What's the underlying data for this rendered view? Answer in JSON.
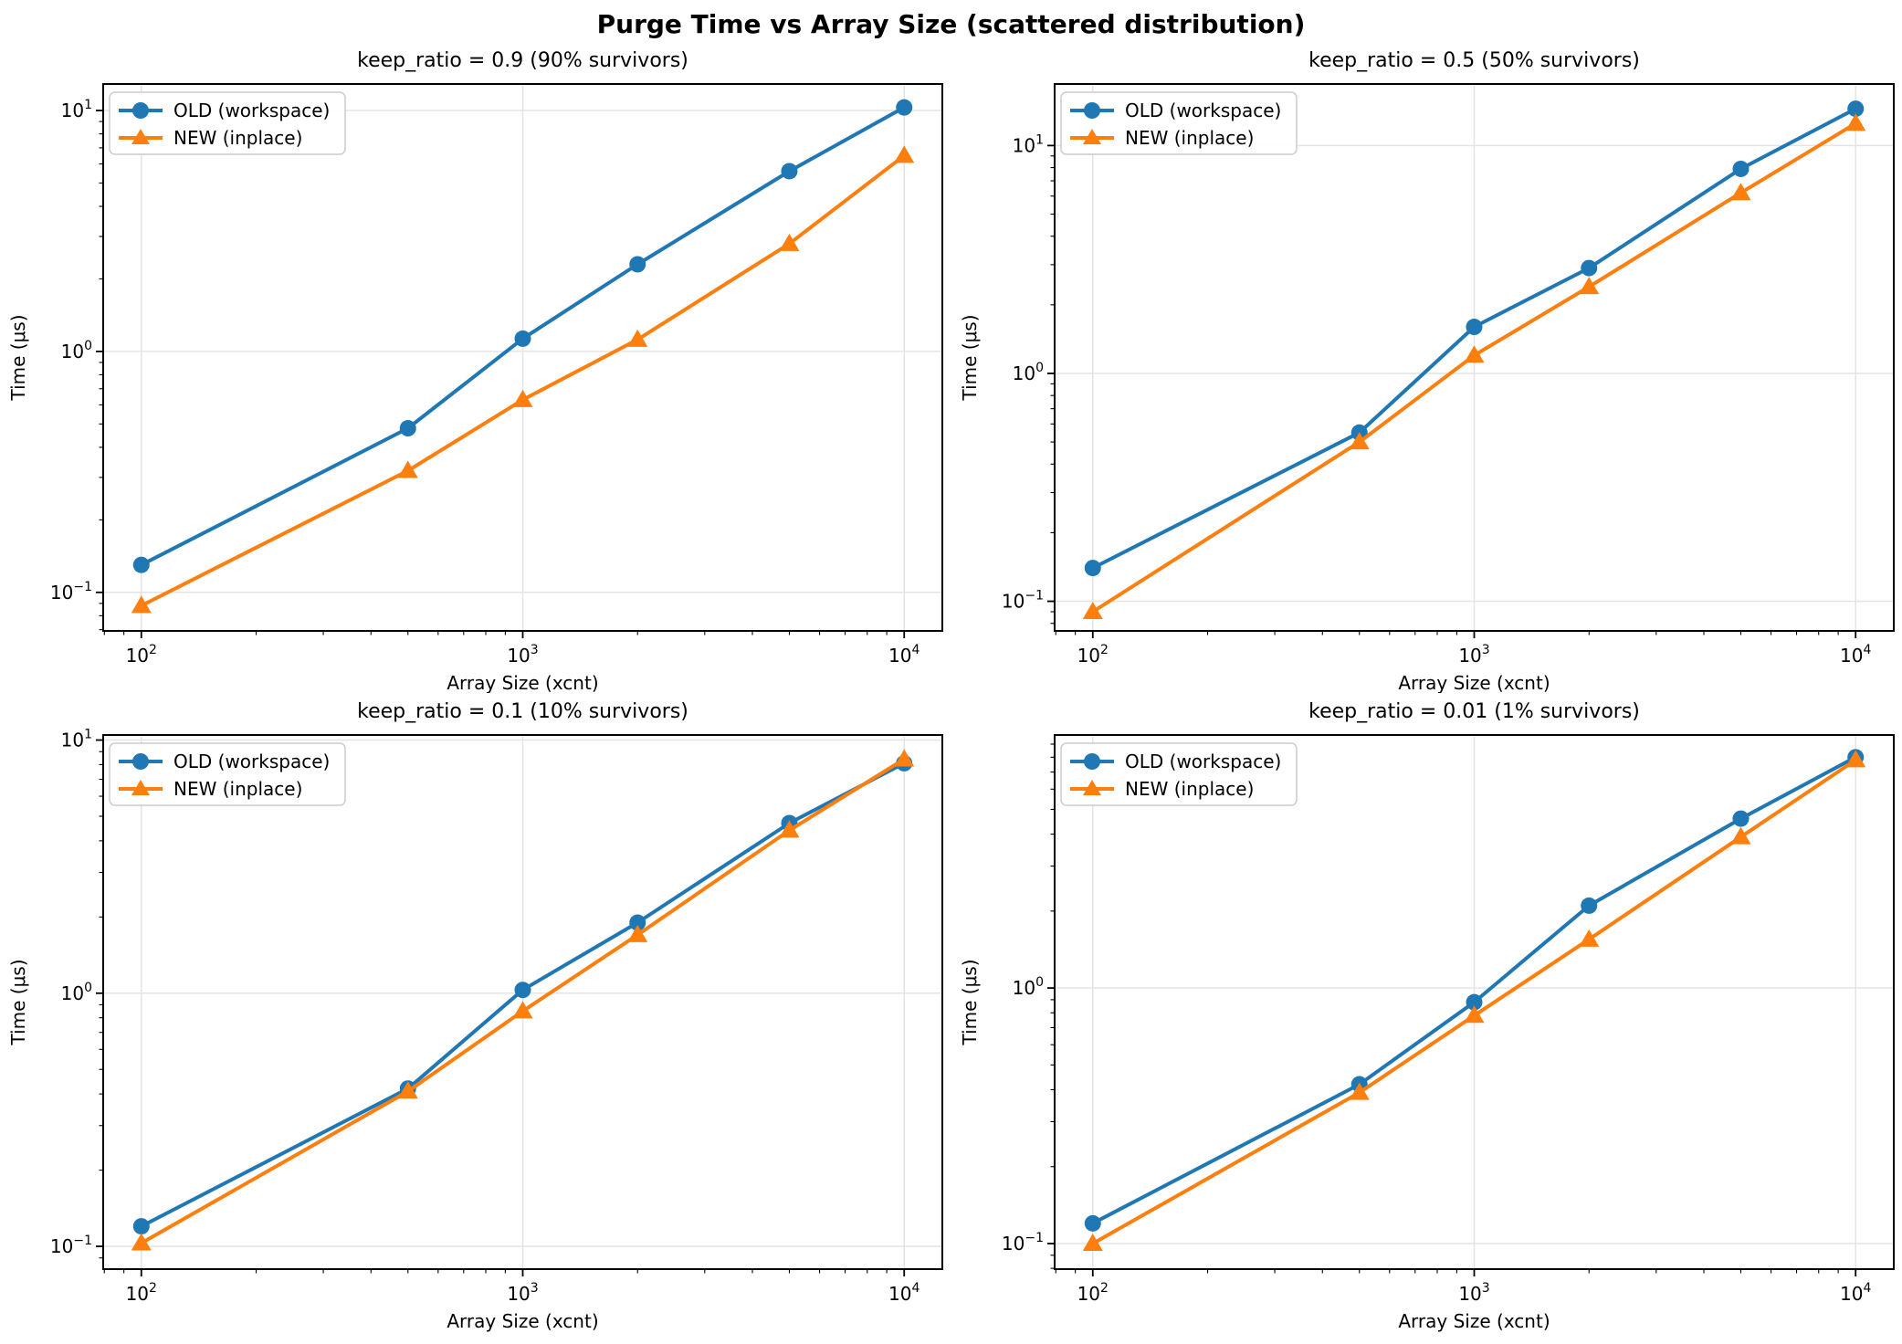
{
  "page": {
    "main_title": "Purge Time vs Array Size (scattered distribution)"
  },
  "colors": {
    "old_series": "#1f77b4",
    "new_series": "#ff7f0e",
    "grid": "#e4e4e4",
    "axis": "#000000",
    "legend_border": "#cccccc",
    "background": "#ffffff"
  },
  "chart_data": [
    {
      "type": "line",
      "title": "keep_ratio = 0.9 (90% survivors)",
      "xlabel": "Array Size (xcnt)",
      "ylabel": "Time (μs)",
      "x_scale": "log",
      "y_scale": "log",
      "grid": true,
      "legend_position": "upper-left",
      "x": [
        100,
        500,
        1000,
        2000,
        5000,
        10000
      ],
      "series": [
        {
          "name": "OLD (workspace)",
          "color": "#1f77b4",
          "marker": "circle",
          "values": [
            0.13,
            0.48,
            1.13,
            2.3,
            5.6,
            10.3
          ]
        },
        {
          "name": "NEW (inplace)",
          "color": "#ff7f0e",
          "marker": "triangle",
          "values": [
            0.088,
            0.32,
            0.63,
            1.12,
            2.8,
            6.5
          ]
        }
      ],
      "xlim_log": [
        1.9,
        4.1
      ],
      "ylim_log": [
        -1.16,
        1.11
      ],
      "x_tick_exponents": [
        2,
        3,
        4
      ],
      "y_tick_exponents": [
        1,
        0,
        -1
      ]
    },
    {
      "type": "line",
      "title": "keep_ratio = 0.5 (50% survivors)",
      "xlabel": "Array Size (xcnt)",
      "ylabel": "Time (μs)",
      "x_scale": "log",
      "y_scale": "log",
      "grid": true,
      "legend_position": "upper-left",
      "x": [
        100,
        500,
        1000,
        2000,
        5000,
        10000
      ],
      "series": [
        {
          "name": "OLD (workspace)",
          "color": "#1f77b4",
          "marker": "circle",
          "values": [
            0.14,
            0.55,
            1.6,
            2.9,
            7.9,
            14.5
          ]
        },
        {
          "name": "NEW (inplace)",
          "color": "#ff7f0e",
          "marker": "triangle",
          "values": [
            0.09,
            0.5,
            1.2,
            2.4,
            6.2,
            12.5
          ]
        }
      ],
      "xlim_log": [
        1.9,
        4.1
      ],
      "ylim_log": [
        -1.13,
        1.27
      ],
      "x_tick_exponents": [
        2,
        3,
        4
      ],
      "y_tick_exponents": [
        1,
        0,
        -1
      ]
    },
    {
      "type": "line",
      "title": "keep_ratio = 0.1 (10% survivors)",
      "xlabel": "Array Size (xcnt)",
      "ylabel": "Time (μs)",
      "x_scale": "log",
      "y_scale": "log",
      "grid": true,
      "legend_position": "upper-left",
      "x": [
        100,
        500,
        1000,
        2000,
        5000,
        10000
      ],
      "series": [
        {
          "name": "OLD (workspace)",
          "color": "#1f77b4",
          "marker": "circle",
          "values": [
            0.12,
            0.42,
            1.03,
            1.9,
            4.7,
            8.1
          ]
        },
        {
          "name": "NEW (inplace)",
          "color": "#ff7f0e",
          "marker": "triangle",
          "values": [
            0.103,
            0.41,
            0.85,
            1.7,
            4.4,
            8.4
          ]
        }
      ],
      "xlim_log": [
        1.9,
        4.1
      ],
      "ylim_log": [
        -1.09,
        1.02
      ],
      "x_tick_exponents": [
        2,
        3,
        4
      ],
      "y_tick_exponents": [
        1,
        0,
        -1
      ]
    },
    {
      "type": "line",
      "title": "keep_ratio = 0.01 (1% survivors)",
      "xlabel": "Array Size (xcnt)",
      "ylabel": "Time (μs)",
      "x_scale": "log",
      "y_scale": "log",
      "grid": true,
      "legend_position": "upper-left",
      "x": [
        100,
        500,
        1000,
        2000,
        5000,
        10000
      ],
      "series": [
        {
          "name": "OLD (workspace)",
          "color": "#1f77b4",
          "marker": "circle",
          "values": [
            0.12,
            0.42,
            0.88,
            2.1,
            4.6,
            8.0
          ]
        },
        {
          "name": "NEW (inplace)",
          "color": "#ff7f0e",
          "marker": "triangle",
          "values": [
            0.1,
            0.39,
            0.78,
            1.55,
            3.9,
            7.8
          ]
        }
      ],
      "xlim_log": [
        1.9,
        4.1
      ],
      "ylim_log": [
        -1.1,
        0.99
      ],
      "x_tick_exponents": [
        2,
        3,
        4
      ],
      "y_tick_exponents": [
        0,
        -1
      ]
    }
  ]
}
